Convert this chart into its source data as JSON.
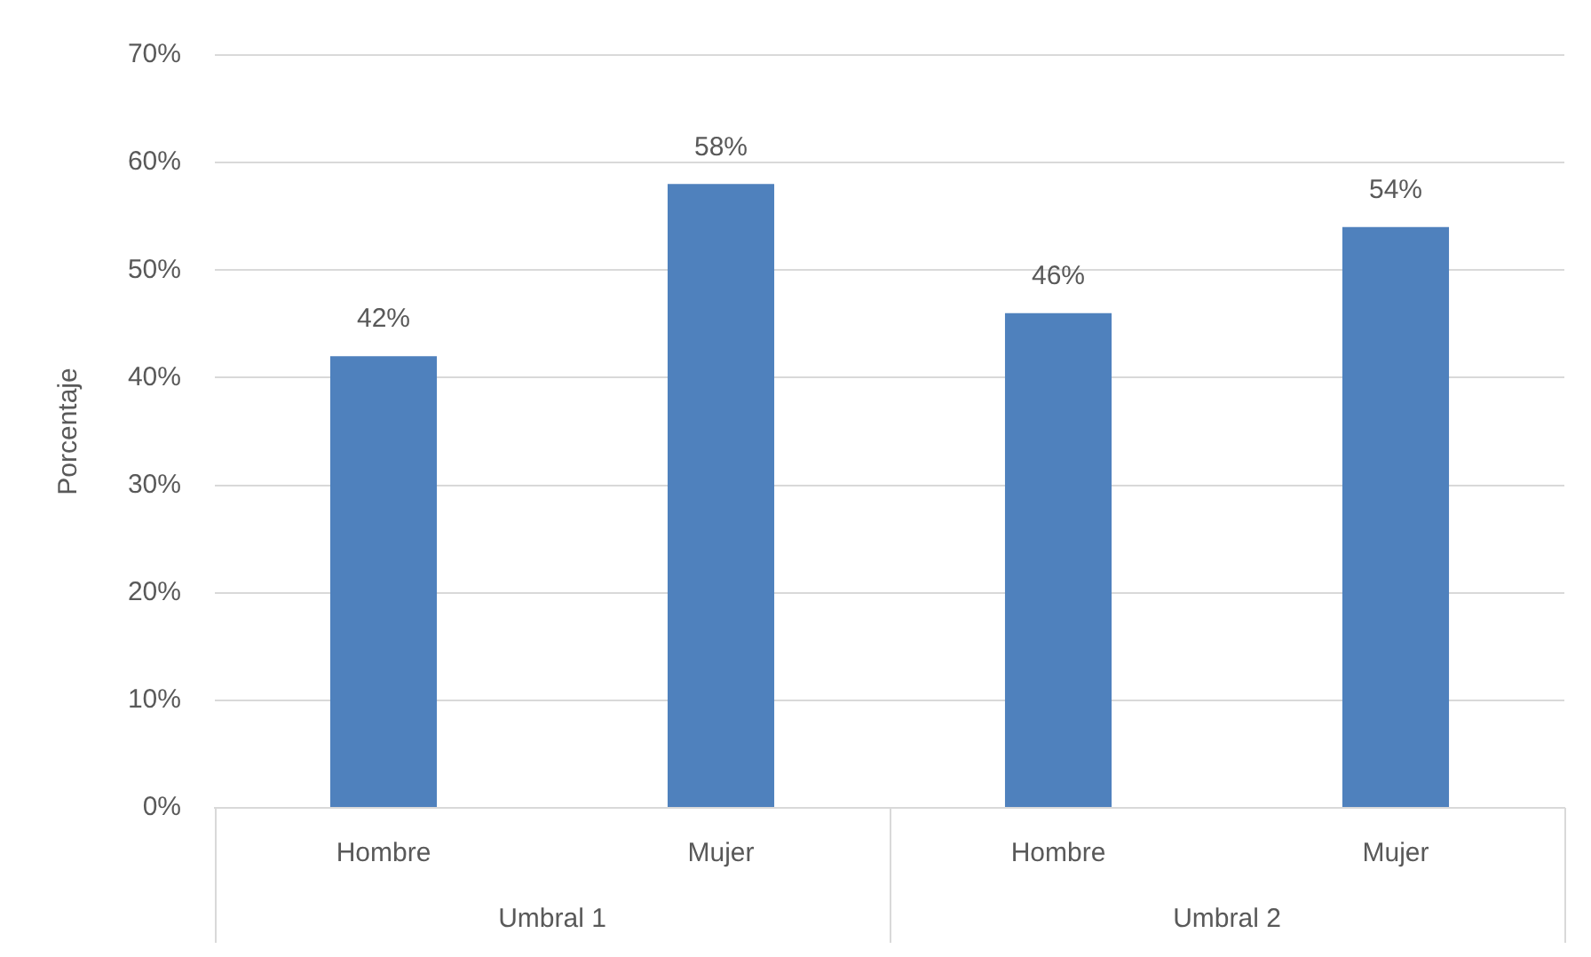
{
  "chart_data": {
    "type": "bar",
    "ylabel": "Porcentaje",
    "categories": [
      "Hombre",
      "Mujer",
      "Hombre",
      "Mujer"
    ],
    "values": [
      42,
      58,
      46,
      54
    ],
    "color": "#4f81bd",
    "value_labels": [
      "42%",
      "58%",
      "46%",
      "54%"
    ],
    "ylim": [
      0,
      70
    ],
    "yticks": [
      {
        "value": 0,
        "label": "0%"
      },
      {
        "value": 10,
        "label": "10%"
      },
      {
        "value": 20,
        "label": "20%"
      },
      {
        "value": 30,
        "label": "30%"
      },
      {
        "value": 40,
        "label": "40%"
      },
      {
        "value": 50,
        "label": "50%"
      },
      {
        "value": 60,
        "label": "60%"
      },
      {
        "value": 70,
        "label": "70%"
      }
    ],
    "grid": "y",
    "annotations": [
      "Umbral 1",
      "Umbral 2"
    ]
  }
}
